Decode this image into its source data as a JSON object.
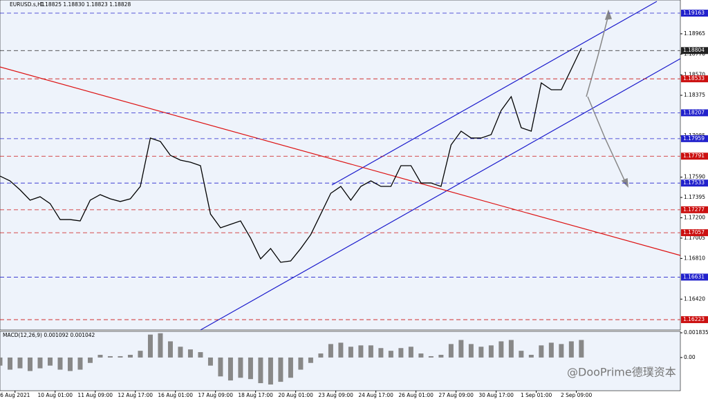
{
  "chart_data": [
    {
      "type": "line",
      "title": "EURUSD.s,H1",
      "subtitle": "1.18825 1.18830 1.18823 1.18828",
      "x": [
        0,
        8,
        16,
        24,
        32,
        40,
        48,
        56,
        64,
        72,
        80,
        88,
        96,
        104,
        112,
        120,
        128,
        136,
        144,
        152,
        160,
        168,
        176,
        184,
        192,
        200,
        208,
        216,
        224,
        232,
        240,
        248,
        256,
        264,
        272,
        280,
        288,
        296,
        304,
        312,
        320,
        328,
        336,
        344,
        352,
        360,
        368,
        376,
        384,
        392,
        400,
        408,
        416,
        424,
        432,
        440,
        448,
        456,
        464
      ],
      "values": [
        1.176,
        1.17554,
        1.17468,
        1.17369,
        1.17402,
        1.17336,
        1.17183,
        1.17183,
        1.1717,
        1.17369,
        1.17422,
        1.17382,
        1.17356,
        1.17382,
        1.17501,
        1.17965,
        1.17932,
        1.17799,
        1.17753,
        1.17733,
        1.177,
        1.17236,
        1.17104,
        1.17137,
        1.1717,
        1.17005,
        1.16806,
        1.16905,
        1.16773,
        1.16786,
        1.16905,
        1.17038,
        1.17236,
        1.17435,
        1.17501,
        1.17369,
        1.17501,
        1.17554,
        1.17501,
        1.17501,
        1.177,
        1.177,
        1.17534,
        1.17534,
        1.17501,
        1.17899,
        1.18031,
        1.17965,
        1.17965,
        1.17998,
        1.1823,
        1.18362,
        1.18064,
        1.18031,
        1.18494,
        1.18428,
        1.18428,
        1.18627,
        1.18828
      ],
      "color": "#000000",
      "xlim": [
        0,
        543
      ],
      "ylim": [
        1.16124,
        1.19289
      ],
      "yticks": [
        1.18965,
        {
          "value": 1.1877,
          "label": "1.18770"
        },
        {
          "value": 1.1857,
          "label": "1.18570"
        },
        1.18375,
        1.17985,
        {
          "value": 1.1759,
          "label": "1.17590"
        },
        1.17395,
        {
          "value": 1.172,
          "label": "1.17200"
        },
        1.17005,
        {
          "value": 1.1681,
          "label": "1.16810"
        },
        {
          "value": 1.1642,
          "label": "1.16420"
        }
      ],
      "levels": [
        {
          "value": 1.19163,
          "color": "#2222cc"
        },
        {
          "value": 1.18804,
          "color": "#222222"
        },
        {
          "value": 1.18533,
          "color": "#cc1111"
        },
        {
          "value": 1.18207,
          "color": "#2222cc"
        },
        {
          "value": 1.17959,
          "color": "#2222cc"
        },
        {
          "value": 1.17791,
          "color": "#cc1111"
        },
        {
          "value": 1.17533,
          "color": "#2222cc"
        },
        {
          "value": 1.17277,
          "color": "#cc1111"
        },
        {
          "value": 1.17057,
          "color": "#cc1111"
        },
        {
          "value": 1.16631,
          "color": "#2222cc"
        },
        {
          "value": 1.16223,
          "color": "#cc1111"
        }
      ]
    },
    {
      "type": "bar",
      "title": "MACD(12,26,9) 0.001092 0.001042",
      "annotation": "@DooPrime德璞资本",
      "x": [
        0,
        8,
        16,
        24,
        32,
        40,
        48,
        56,
        64,
        72,
        80,
        88,
        96,
        104,
        112,
        120,
        128,
        136,
        144,
        152,
        160,
        168,
        176,
        184,
        192,
        200,
        208,
        216,
        224,
        232,
        240,
        248,
        256,
        264,
        272,
        280,
        288,
        296,
        304,
        312,
        320,
        328,
        336,
        344,
        352,
        360,
        368,
        376,
        384,
        392,
        400,
        408,
        416,
        424,
        432,
        440,
        448,
        456,
        464
      ],
      "values": [
        -0.0006,
        -0.0009,
        -0.0008,
        -0.001,
        -0.0008,
        -0.0006,
        -0.0009,
        -0.001,
        -0.0009,
        -0.0004,
        0.0002,
        0.0001,
        0.0001,
        0.0002,
        0.0005,
        0.0017,
        0.0018,
        0.0012,
        0.0008,
        0.0006,
        0.0004,
        -0.0006,
        -0.0014,
        -0.0017,
        -0.0015,
        -0.0016,
        -0.0019,
        -0.002,
        -0.0018,
        -0.0015,
        -0.0009,
        -0.0004,
        0.0003,
        0.001,
        0.0011,
        0.0008,
        0.0009,
        0.0009,
        0.0007,
        0.0005,
        0.0007,
        0.0008,
        0.0003,
        0.0001,
        0.0002,
        0.001,
        0.0013,
        0.001,
        0.0008,
        0.0009,
        0.0012,
        0.0013,
        0.0005,
        0.0002,
        0.0009,
        0.0011,
        0.001,
        0.0012,
        0.0013
      ],
      "color": "#888888",
      "xlim": [
        0,
        543
      ],
      "ylim": [
        -0.00246,
        0.00194
      ],
      "yticks": [
        0.001835,
        {
          "value": 0,
          "label": "0.00"
        }
      ],
      "xticks": [
        {
          "value": 12,
          "label": "6 Aug 2021"
        },
        {
          "value": 44,
          "label": "10 Aug 01:00"
        },
        {
          "value": 76,
          "label": "11 Aug 09:00"
        },
        {
          "value": 108,
          "label": "12 Aug 17:00"
        },
        {
          "value": 140,
          "label": "16 Aug 01:00"
        },
        {
          "value": 172,
          "label": "17 Aug 09:00"
        },
        {
          "value": 204,
          "label": "18 Aug 17:00"
        },
        {
          "value": 236,
          "label": "20 Aug 01:00"
        },
        {
          "value": 268,
          "label": "23 Aug 09:00"
        },
        {
          "value": 300,
          "label": "24 Aug 17:00"
        },
        {
          "value": 332,
          "label": "26 Aug 01:00"
        },
        {
          "value": 364,
          "label": "27 Aug 09:00"
        },
        {
          "value": 396,
          "label": "30 Aug 17:00"
        },
        {
          "value": 428,
          "label": "1 Sep 01:00"
        },
        {
          "value": 460,
          "label": "2 Sep 09:00"
        }
      ]
    }
  ]
}
